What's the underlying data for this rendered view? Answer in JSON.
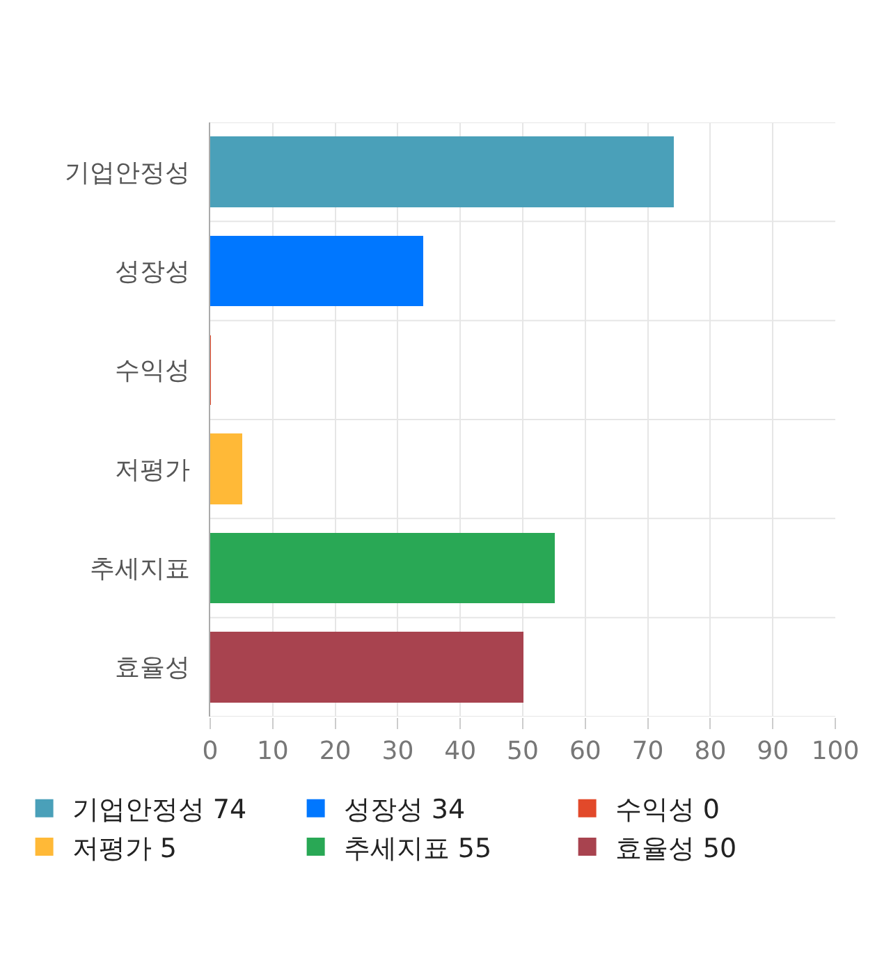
{
  "chart_data": {
    "type": "bar",
    "orientation": "horizontal",
    "stacked": true,
    "categories": [
      "기업안정성",
      "성장성",
      "수익성",
      "저평가",
      "추세지표",
      "효율성"
    ],
    "series": [
      {
        "name": "기업안정성 74",
        "color": "#4aa0b9",
        "values": [
          74,
          null,
          null,
          null,
          null,
          null
        ]
      },
      {
        "name": "성장성 34",
        "color": "#0077ff",
        "values": [
          null,
          34,
          null,
          null,
          null,
          null
        ]
      },
      {
        "name": "수익성 0",
        "color": "#e2492a",
        "values": [
          null,
          null,
          0,
          null,
          null,
          null
        ]
      },
      {
        "name": "저평가 5",
        "color": "#ffb937",
        "values": [
          null,
          null,
          null,
          5,
          null,
          null
        ]
      },
      {
        "name": "추세지표 55",
        "color": "#29a855",
        "values": [
          null,
          null,
          null,
          null,
          55,
          null
        ]
      },
      {
        "name": "효율성 50",
        "color": "#a8434f",
        "values": [
          null,
          null,
          null,
          null,
          null,
          50
        ]
      }
    ],
    "xlim": [
      0,
      100
    ],
    "xticks": [
      0,
      10,
      20,
      30,
      40,
      50,
      60,
      70,
      80,
      90,
      100
    ],
    "grid": true,
    "legend": "bottom"
  }
}
